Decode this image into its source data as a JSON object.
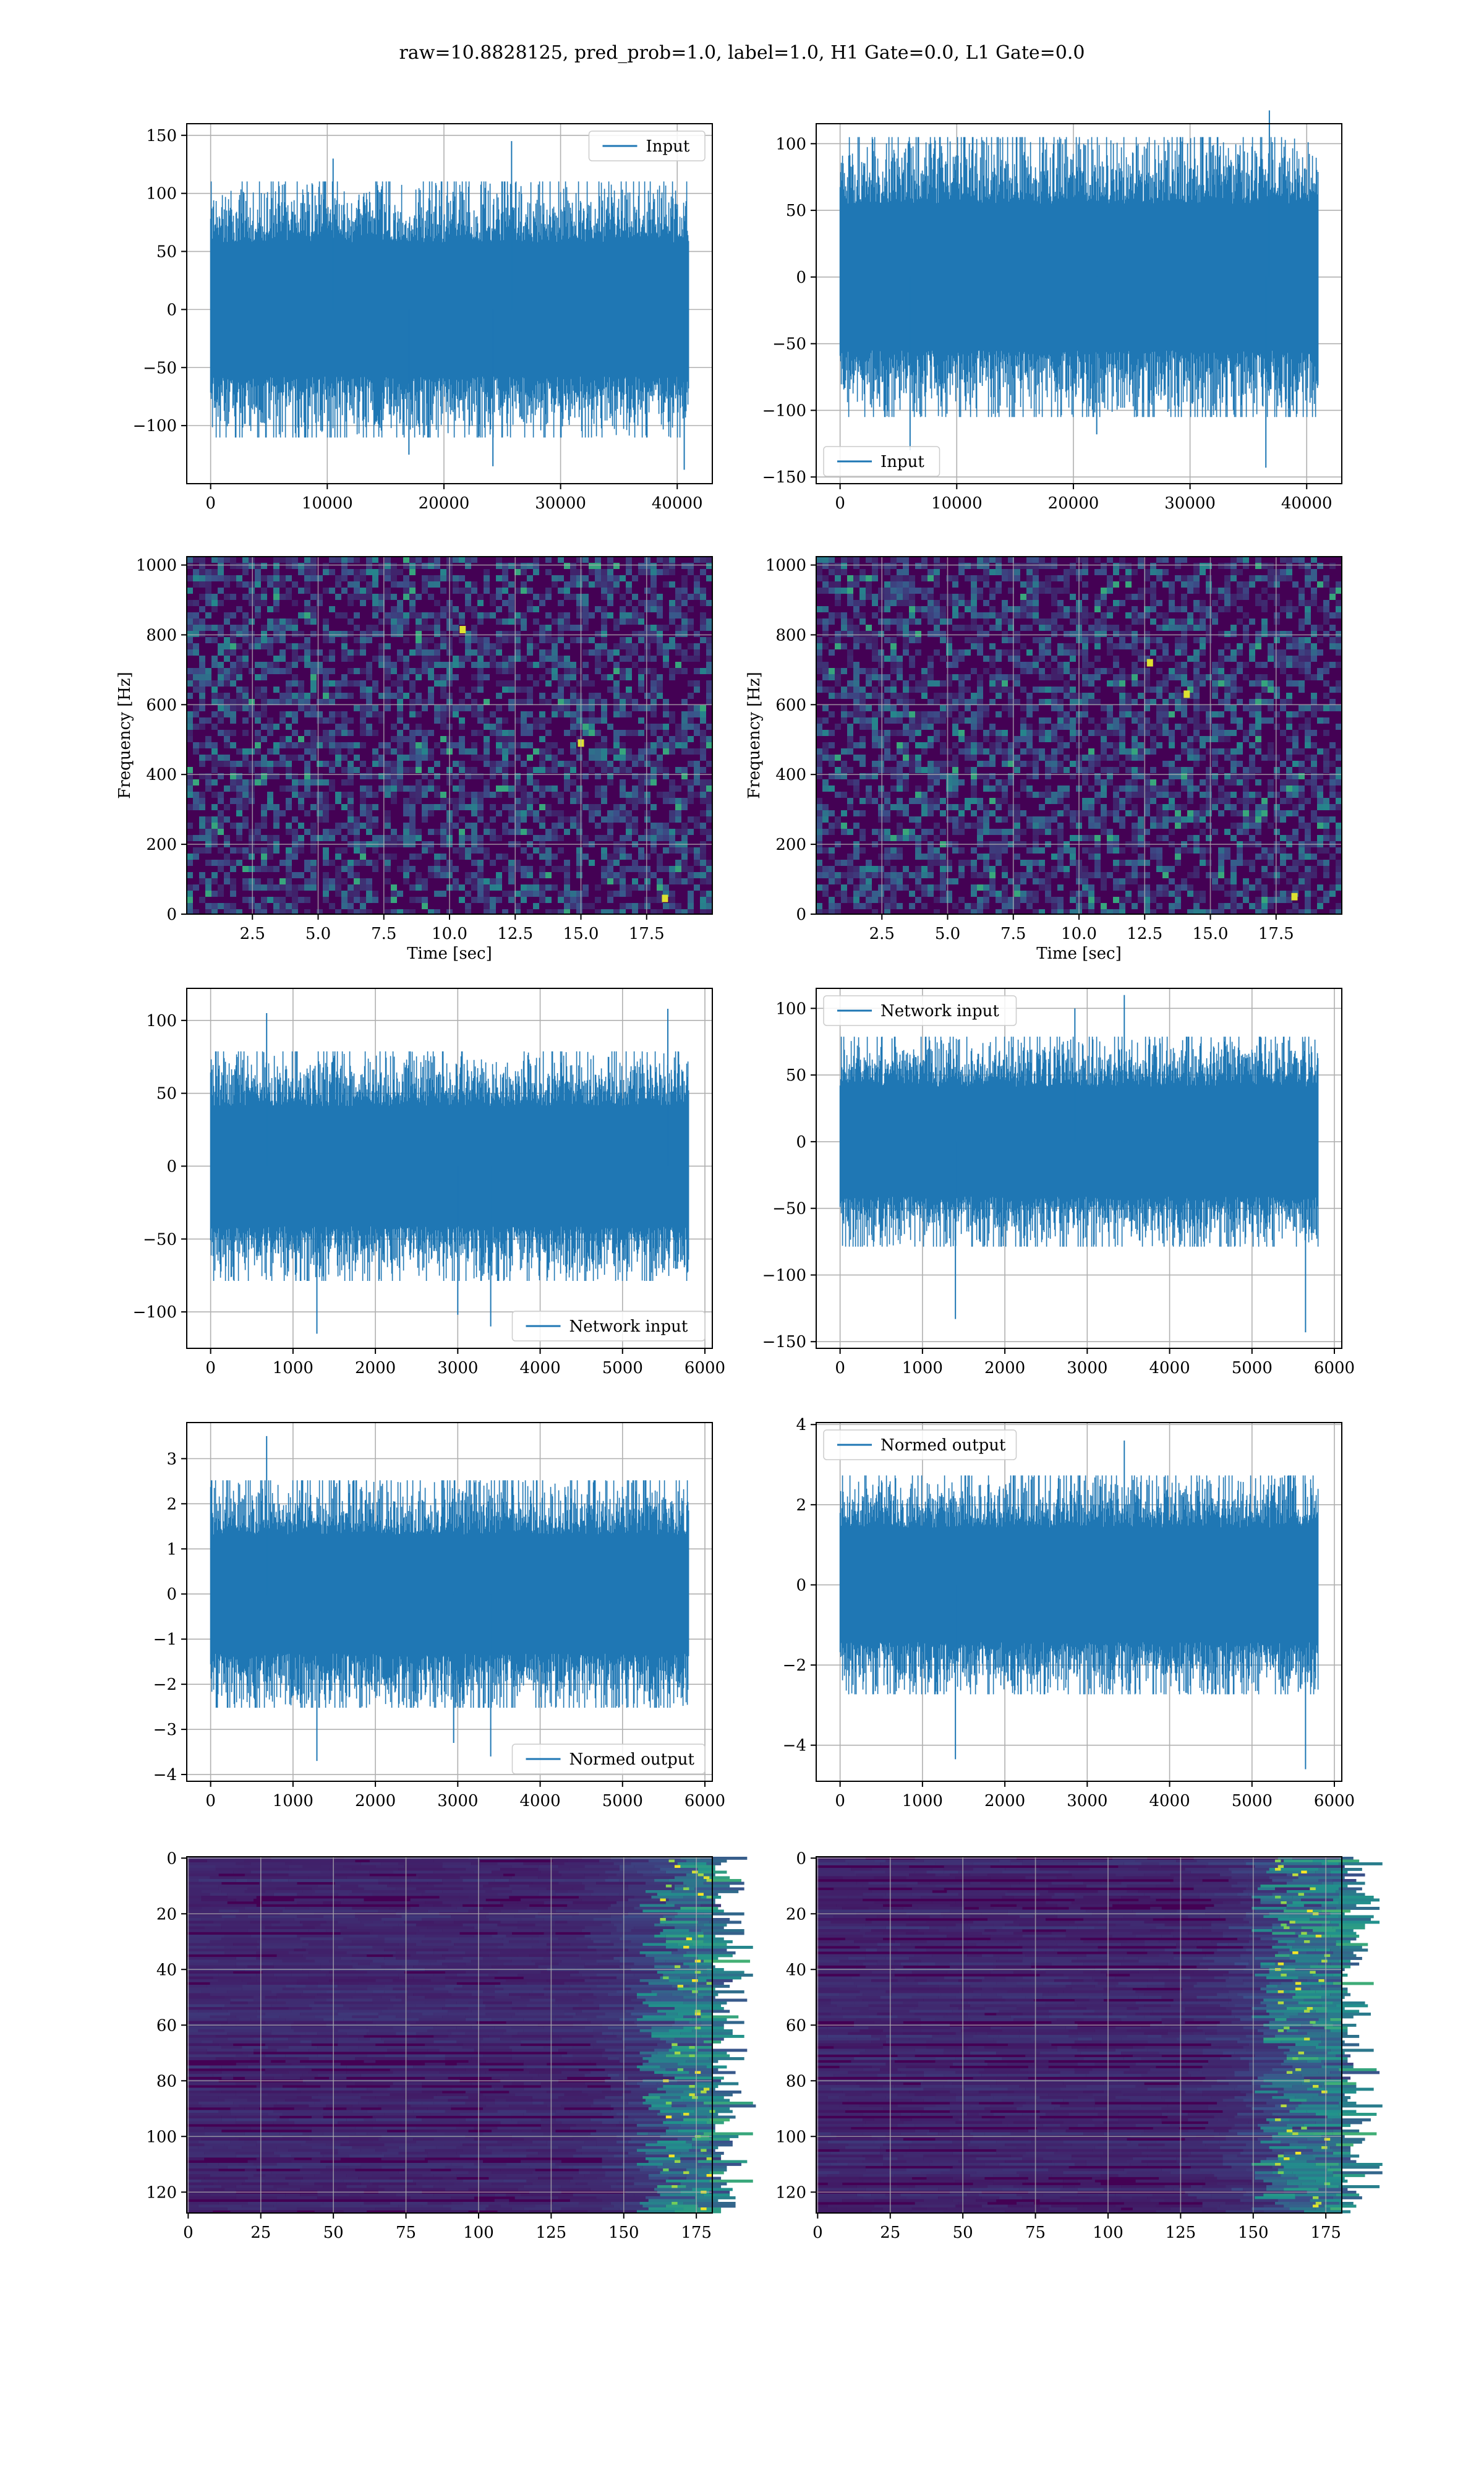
{
  "title": "raw=10.8828125, pred_prob=1.0, label=1.0, H1 Gate=0.0, L1 Gate=0.0",
  "colors": {
    "line": "#1f77b4",
    "viridis_dark": "#440154",
    "grid": "#b0b0b0",
    "axes": "#000000"
  },
  "chart_data": [
    {
      "id": "input-h1",
      "type": "line",
      "series": [
        {
          "name": "Input"
        }
      ],
      "legend": "upper right",
      "grid": true,
      "x_range": [
        0,
        40960
      ],
      "xlim": [
        -2048,
        43008
      ],
      "xticks": [
        0,
        10000,
        20000,
        30000,
        40000
      ],
      "ylim": [
        -150,
        160
      ],
      "yticks": [
        -100,
        -50,
        0,
        50,
        100,
        150
      ],
      "amplitude": 105,
      "noise_sd": 31,
      "spikes": [
        [
          10500,
          130
        ],
        [
          25800,
          145
        ],
        [
          24200,
          -135
        ],
        [
          40600,
          -138
        ],
        [
          17000,
          -125
        ]
      ]
    },
    {
      "id": "input-l1",
      "type": "line",
      "series": [
        {
          "name": "Input"
        }
      ],
      "legend": "lower left",
      "grid": true,
      "x_range": [
        0,
        40960
      ],
      "xlim": [
        -2048,
        43008
      ],
      "xticks": [
        0,
        10000,
        20000,
        30000,
        40000
      ],
      "ylim": [
        -155,
        115
      ],
      "yticks": [
        -150,
        -100,
        -50,
        0,
        50,
        100
      ],
      "amplitude": 100,
      "noise_sd": 30,
      "spikes": [
        [
          36500,
          -143
        ],
        [
          6000,
          -130
        ],
        [
          36800,
          125
        ],
        [
          22000,
          -118
        ]
      ]
    },
    {
      "id": "spectrogram-h1",
      "type": "heatmap",
      "grid": true,
      "xlabel": "Time [sec]",
      "ylabel": "Frequency [Hz]",
      "xlim": [
        0,
        20
      ],
      "ylim": [
        0,
        1024
      ],
      "xticks": [
        2.5,
        5.0,
        7.5,
        10.0,
        12.5,
        15.0,
        17.5
      ],
      "xtick_labels": [
        "2.5",
        "5.0",
        "7.5",
        "10.0",
        "12.5",
        "15.0",
        "17.5"
      ],
      "yticks": [
        0,
        200,
        400,
        600,
        800,
        1000
      ],
      "hotspots": [
        [
          10.5,
          815
        ],
        [
          18.2,
          45
        ],
        [
          15.0,
          490
        ]
      ]
    },
    {
      "id": "spectrogram-l1",
      "type": "heatmap",
      "grid": true,
      "xlabel": "Time [sec]",
      "ylabel": "Frequency [Hz]",
      "xlim": [
        0,
        20
      ],
      "ylim": [
        0,
        1024
      ],
      "xticks": [
        2.5,
        5.0,
        7.5,
        10.0,
        12.5,
        15.0,
        17.5
      ],
      "xtick_labels": [
        "2.5",
        "5.0",
        "7.5",
        "10.0",
        "12.5",
        "15.0",
        "17.5"
      ],
      "yticks": [
        0,
        200,
        400,
        600,
        800,
        1000
      ],
      "hotspots": [
        [
          12.7,
          720
        ],
        [
          14.1,
          630
        ],
        [
          18.2,
          50
        ]
      ]
    },
    {
      "id": "network-input-h1",
      "type": "line",
      "series": [
        {
          "name": "Network input"
        }
      ],
      "legend": "lower right",
      "grid": true,
      "x_range": [
        0,
        5800
      ],
      "xlim": [
        -290,
        6090
      ],
      "xticks": [
        0,
        1000,
        2000,
        3000,
        4000,
        5000,
        6000
      ],
      "ylim": [
        -125,
        122
      ],
      "yticks": [
        -100,
        -50,
        0,
        50,
        100
      ],
      "amplitude": 75,
      "noise_sd": 22,
      "spikes": [
        [
          680,
          105
        ],
        [
          5550,
          108
        ],
        [
          1290,
          -115
        ],
        [
          3400,
          -110
        ],
        [
          3000,
          -102
        ]
      ]
    },
    {
      "id": "network-input-l1",
      "type": "line",
      "series": [
        {
          "name": "Network input"
        }
      ],
      "legend": "upper left",
      "grid": true,
      "x_range": [
        0,
        5800
      ],
      "xlim": [
        -290,
        6090
      ],
      "xticks": [
        0,
        1000,
        2000,
        3000,
        4000,
        5000,
        6000
      ],
      "ylim": [
        -155,
        115
      ],
      "yticks": [
        -150,
        -100,
        -50,
        0,
        50,
        100
      ],
      "amplitude": 75,
      "noise_sd": 22,
      "spikes": [
        [
          3450,
          110
        ],
        [
          1400,
          -133
        ],
        [
          5650,
          -143
        ],
        [
          2850,
          100
        ]
      ]
    },
    {
      "id": "normed-output-h1",
      "type": "line",
      "series": [
        {
          "name": "Normed output"
        }
      ],
      "legend": "lower right",
      "grid": true,
      "x_range": [
        0,
        5800
      ],
      "xlim": [
        -290,
        6090
      ],
      "xticks": [
        0,
        1000,
        2000,
        3000,
        4000,
        5000,
        6000
      ],
      "ylim": [
        -4.15,
        3.8
      ],
      "yticks": [
        -4,
        -3,
        -2,
        -1,
        0,
        1,
        2,
        3
      ],
      "amplitude": 2.4,
      "noise_sd": 0.75,
      "spikes": [
        [
          680,
          3.5
        ],
        [
          1290,
          -3.7
        ],
        [
          3400,
          -3.6
        ],
        [
          2950,
          -3.3
        ]
      ]
    },
    {
      "id": "normed-output-l1",
      "type": "line",
      "series": [
        {
          "name": "Normed output"
        }
      ],
      "legend": "upper left",
      "grid": true,
      "x_range": [
        0,
        5800
      ],
      "xlim": [
        -290,
        6090
      ],
      "xticks": [
        0,
        1000,
        2000,
        3000,
        4000,
        5000,
        6000
      ],
      "ylim": [
        -4.9,
        4.05
      ],
      "yticks": [
        -4,
        -2,
        0,
        2,
        4
      ],
      "amplitude": 2.6,
      "noise_sd": 0.8,
      "spikes": [
        [
          3450,
          3.6
        ],
        [
          1400,
          -4.35
        ],
        [
          5650,
          -4.6
        ]
      ]
    },
    {
      "id": "feature-map-h1",
      "type": "heatmap",
      "grid": true,
      "xlim": [
        -0.5,
        180.5
      ],
      "ylim": [
        127.5,
        -0.5
      ],
      "xticks": [
        0,
        25,
        50,
        75,
        100,
        125,
        150,
        175
      ],
      "yticks": [
        0,
        20,
        40,
        60,
        80,
        100,
        120
      ],
      "rows": 128,
      "cols": 181,
      "active_from_col": 155
    },
    {
      "id": "feature-map-l1",
      "type": "heatmap",
      "grid": true,
      "xlim": [
        -0.5,
        180.5
      ],
      "ylim": [
        127.5,
        -0.5
      ],
      "xticks": [
        0,
        25,
        50,
        75,
        100,
        125,
        150,
        175
      ],
      "yticks": [
        0,
        20,
        40,
        60,
        80,
        100,
        120
      ],
      "rows": 128,
      "cols": 181,
      "active_from_col": 150
    }
  ]
}
